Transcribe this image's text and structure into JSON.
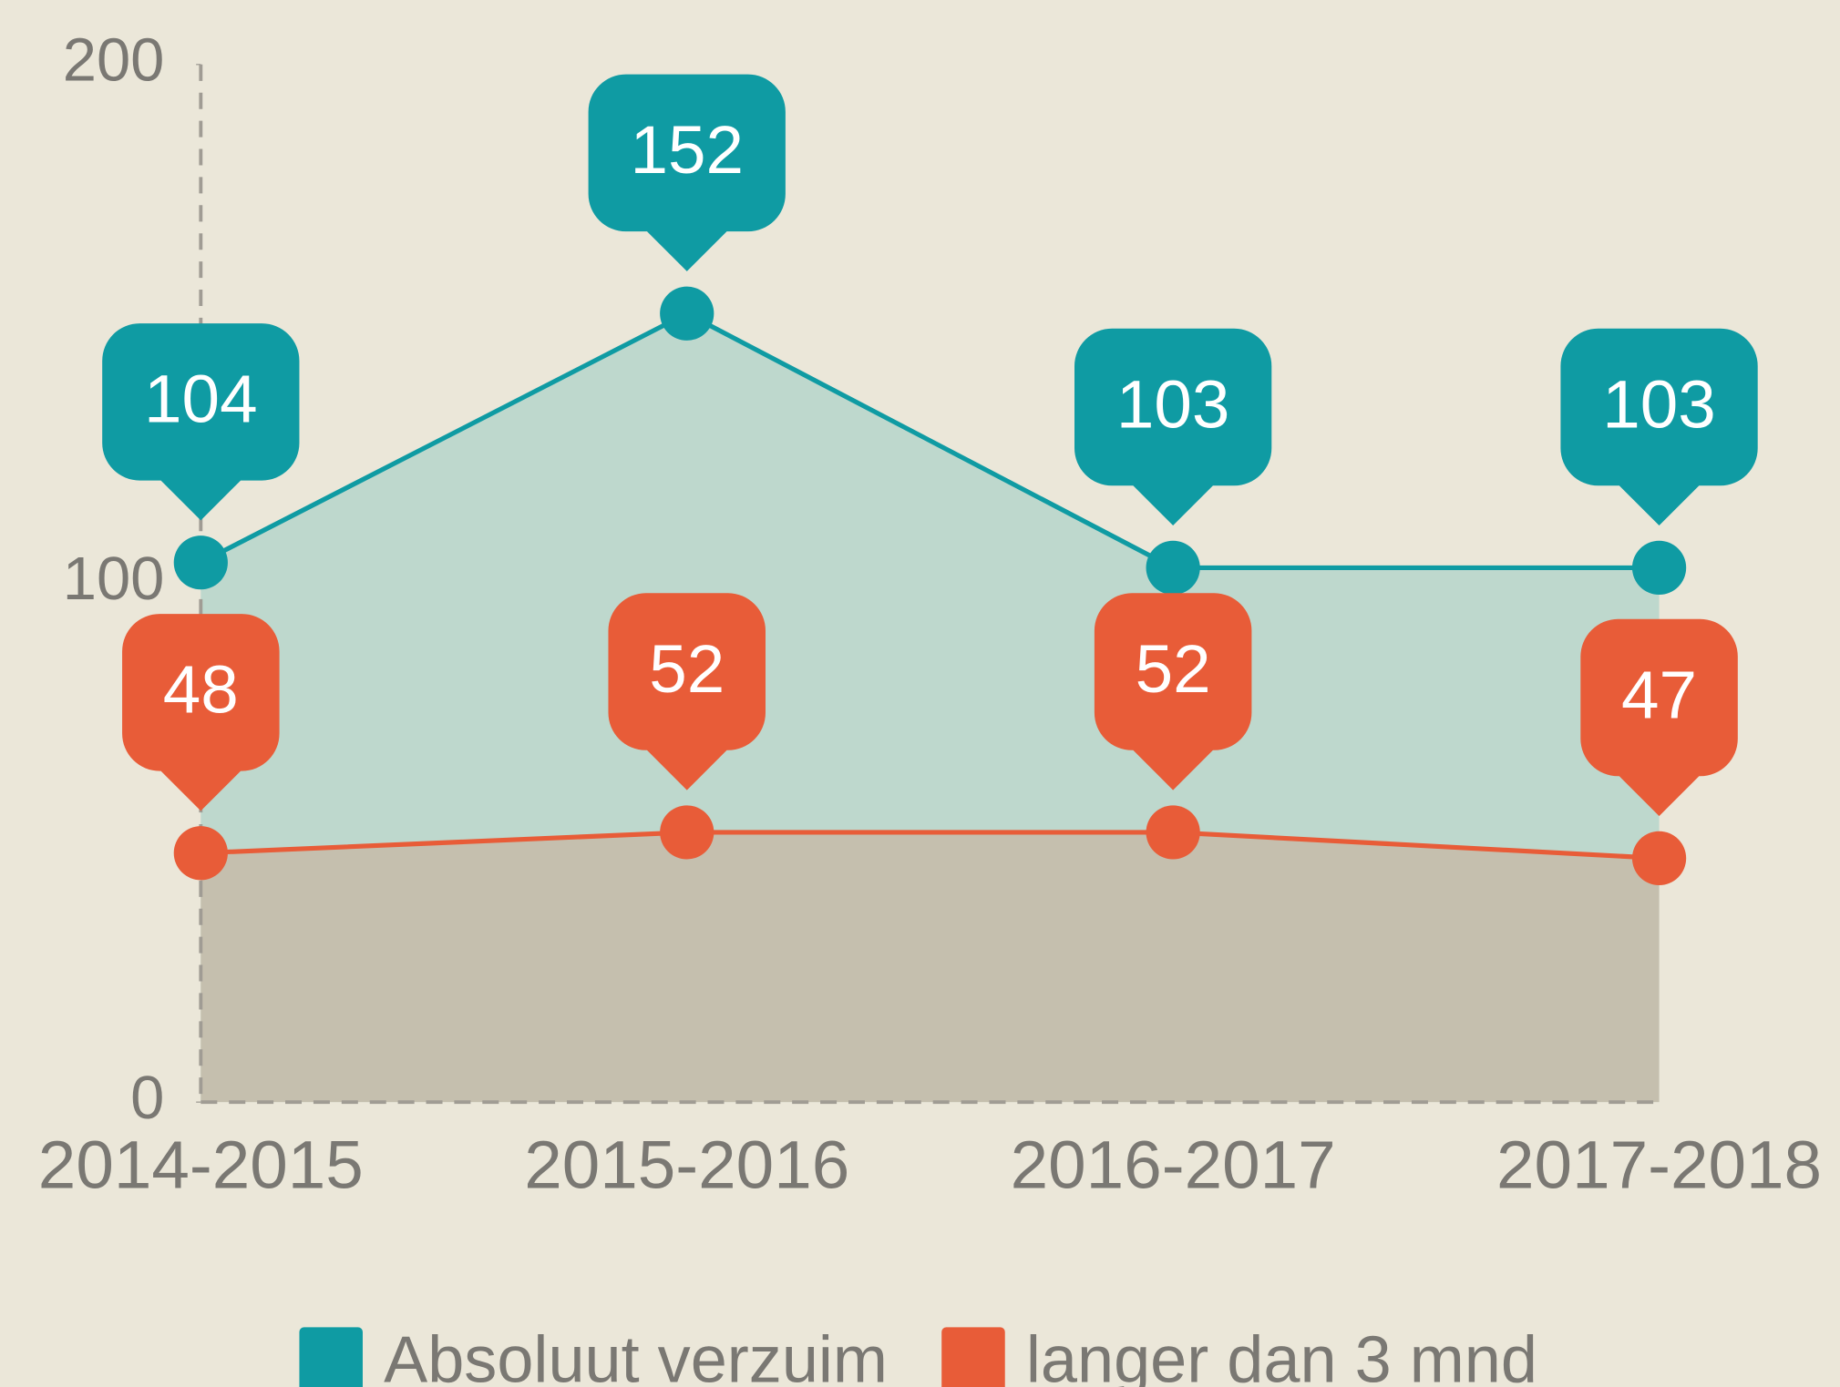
{
  "chart_data": {
    "type": "area",
    "categories": [
      "2014-2015",
      "2015-2016",
      "2016-2017",
      "2017-2018"
    ],
    "series": [
      {
        "name": "Absoluut verzuim",
        "color": "#0f9ba3",
        "fill": "#bed8cd",
        "values": [
          104,
          152,
          103,
          103
        ]
      },
      {
        "name": "langer dan 3 mnd",
        "color": "#e85c38",
        "fill": "#c5bfae",
        "values": [
          48,
          52,
          52,
          47
        ]
      }
    ],
    "ylim": [
      0,
      200
    ],
    "yticks": [
      0,
      100,
      200
    ]
  }
}
